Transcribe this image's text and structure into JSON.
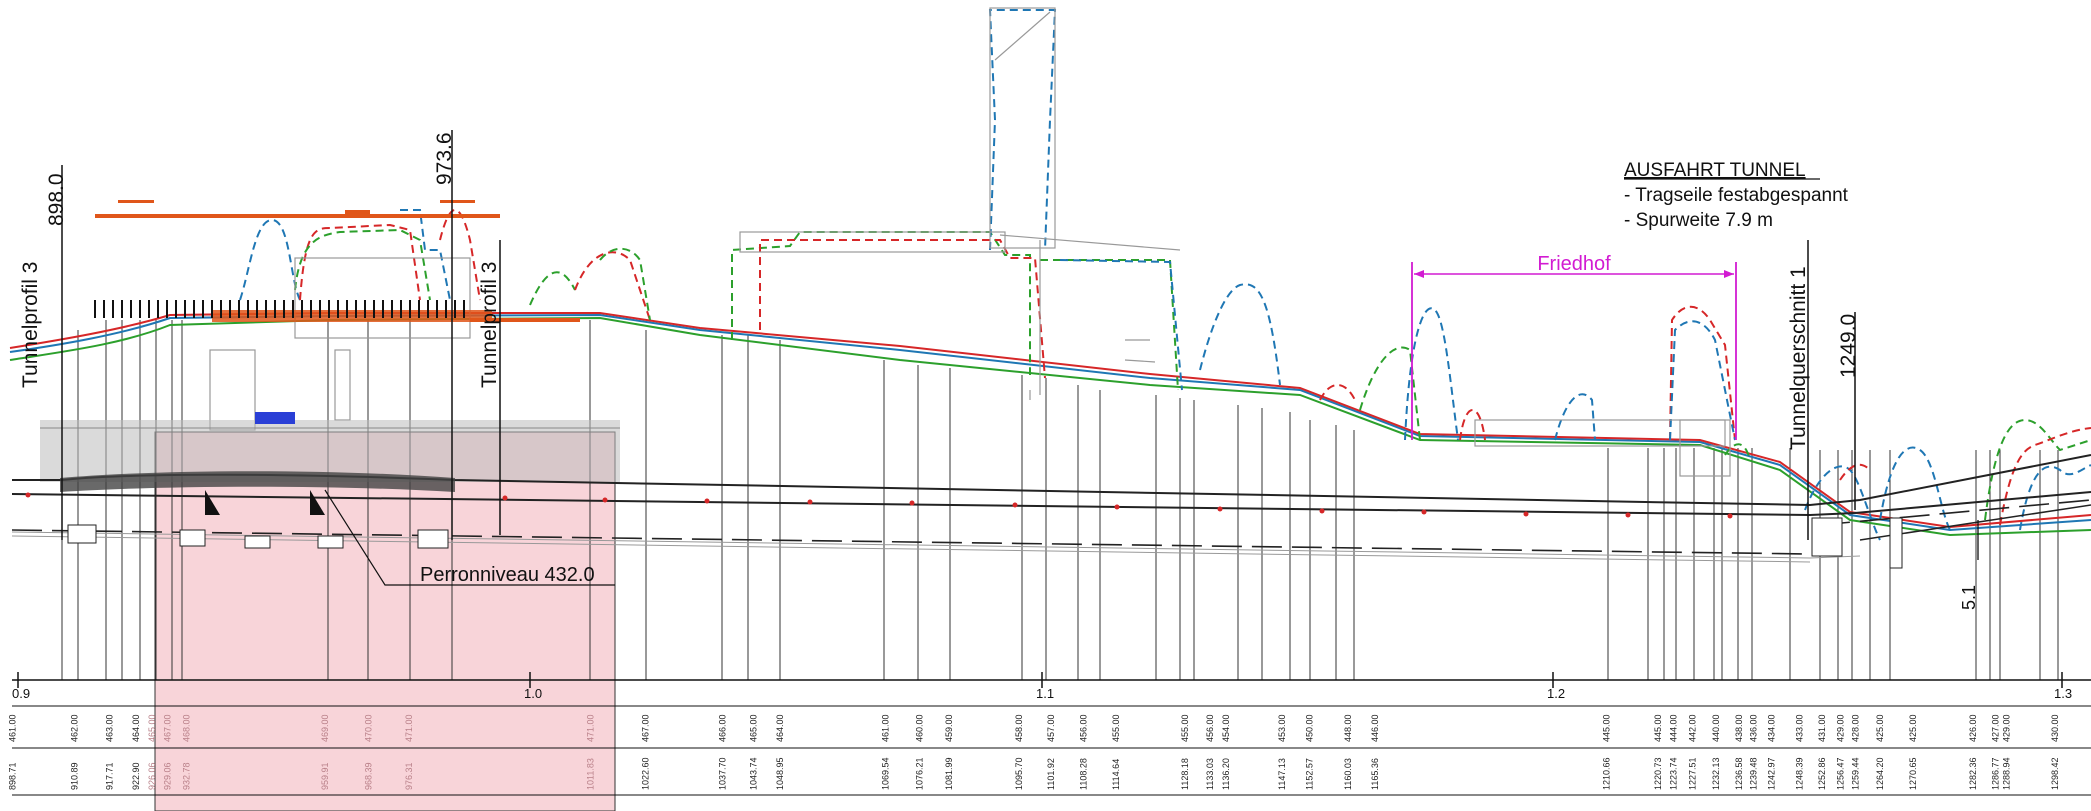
{
  "annotations": {
    "note_title": "AUSFAHRT TUNNEL",
    "note_line1": "- Tragseile festabgespannt",
    "note_line2": "- Spurweite 7.9 m",
    "friedhof": "Friedhof",
    "perron": "Perronniveau 432.0",
    "clearance": "5.1",
    "tunnelprofil_left": "Tunnelprofil 3",
    "tunnelprofil_right": "Tunnelprofil 3",
    "tunnelquerschnitt": "Tunnelquerschnitt 1",
    "station_898": "898.0",
    "station_973": "973.6",
    "station_1249": "1249.0"
  },
  "scale": {
    "ticks": [
      "0.9",
      "1.0",
      "1.1",
      "1.2",
      "1.3"
    ]
  },
  "table": {
    "elevations": [
      "461.00",
      "462.00",
      "463.00",
      "464.00",
      "465.00",
      "467.00",
      "468.00",
      "469.00",
      "470.00",
      "471.00",
      "471.00",
      "467.00",
      "466.00",
      "465.00",
      "464.00",
      "461.00",
      "460.00",
      "459.00",
      "458.00",
      "457.00",
      "456.00",
      "455.00",
      "455.00",
      "456.00",
      "454.00",
      "453.00",
      "450.00",
      "448.00",
      "446.00",
      "445.00",
      "445.00",
      "444.00",
      "442.00",
      "440.00",
      "438.00",
      "436.00",
      "434.00",
      "433.00",
      "431.00",
      "429.00",
      "428.00",
      "425.00",
      "425.00",
      "426.00",
      "427.00",
      "429.00",
      "430.00"
    ],
    "stations": [
      "898.71",
      "910.89",
      "917.71",
      "922.90",
      "926.06",
      "929.06",
      "932.78",
      "959.91",
      "968.39",
      "976.31",
      "1011.83",
      "1022.60",
      "1037.70",
      "1043.74",
      "1048.95",
      "1069.54",
      "1076.21",
      "1081.99",
      "1095.70",
      "1101.92",
      "1108.28",
      "1114.64",
      "1128.18",
      "1133.03",
      "1136.20",
      "1147.13",
      "1152.57",
      "1160.03",
      "1165.36",
      "1210.66",
      "1220.73",
      "1223.74",
      "1227.51",
      "1232.13",
      "1236.58",
      "1239.48",
      "1242.97",
      "1248.39",
      "1252.86",
      "1256.47",
      "1259.44",
      "1264.20",
      "1270.65",
      "1282.36",
      "1286.77",
      "1288.94",
      "1298.42"
    ]
  },
  "colors": {
    "green": "#2ca02c",
    "red": "#d62728",
    "blue": "#1f77b4",
    "magenta": "#d21bd2",
    "orange": "#e0561a",
    "pink": "#f4b8c0"
  }
}
